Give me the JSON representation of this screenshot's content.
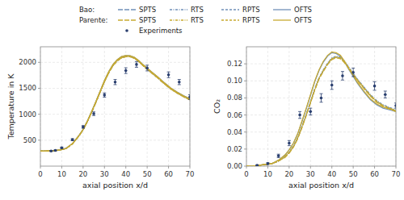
{
  "chart_data": [
    {
      "type": "line",
      "xlabel": "axial position x/d",
      "ylabel": "Temperature in K",
      "xlim": [
        0,
        70
      ],
      "xticks": [
        0,
        10,
        20,
        30,
        40,
        50,
        60,
        70
      ],
      "ylim": [
        0,
        2300
      ],
      "yticks": [
        500,
        1000,
        1500,
        2000
      ],
      "grid": true,
      "legend": "top",
      "x": [
        0,
        3,
        6,
        9,
        12,
        15,
        18,
        20,
        22,
        24,
        26,
        28,
        30,
        32,
        34,
        36,
        38,
        40,
        42,
        44,
        46,
        48,
        50,
        52,
        55,
        58,
        61,
        64,
        67,
        70
      ],
      "series": [
        {
          "name": "SPTS",
          "group": "Bao:",
          "color": "#7090b8",
          "line_style": "long-dash",
          "values": [
            290,
            292,
            295,
            310,
            340,
            430,
            580,
            700,
            860,
            1040,
            1230,
            1430,
            1630,
            1800,
            1940,
            2030,
            2090,
            2110,
            2110,
            2080,
            2020,
            1940,
            1870,
            1800,
            1700,
            1590,
            1490,
            1410,
            1340,
            1280
          ]
        },
        {
          "name": "RTS",
          "group": "Bao:",
          "color": "#7090b8",
          "line_style": "dash-dot",
          "values": [
            290,
            292,
            295,
            310,
            340,
            432,
            583,
            703,
            863,
            1043,
            1233,
            1433,
            1633,
            1803,
            1943,
            2033,
            2093,
            2113,
            2113,
            2083,
            2023,
            1943,
            1873,
            1803,
            1703,
            1593,
            1493,
            1413,
            1343,
            1283
          ]
        },
        {
          "name": "RPTS",
          "group": "Bao:",
          "color": "#7090b8",
          "line_style": "short-dash",
          "values": [
            290,
            292,
            295,
            310,
            340,
            431,
            581,
            701,
            861,
            1041,
            1231,
            1431,
            1631,
            1801,
            1941,
            2031,
            2091,
            2111,
            2111,
            2081,
            2021,
            1941,
            1871,
            1801,
            1701,
            1591,
            1491,
            1411,
            1341,
            1281
          ]
        },
        {
          "name": "OFTS",
          "group": "Bao:",
          "color": "#7090b8",
          "line_style": "solid",
          "values": [
            290,
            292,
            295,
            312,
            343,
            436,
            588,
            710,
            872,
            1055,
            1248,
            1450,
            1652,
            1822,
            1962,
            2052,
            2112,
            2132,
            2128,
            2098,
            2038,
            1958,
            1888,
            1818,
            1718,
            1608,
            1508,
            1428,
            1358,
            1298
          ]
        },
        {
          "name": "SPTS",
          "group": "Parente:",
          "color": "#c8aa30",
          "line_style": "long-dash",
          "values": [
            290,
            292,
            295,
            309,
            338,
            428,
            577,
            697,
            857,
            1037,
            1227,
            1427,
            1627,
            1797,
            1937,
            2027,
            2087,
            2107,
            2107,
            2077,
            2017,
            1937,
            1867,
            1797,
            1697,
            1587,
            1487,
            1407,
            1337,
            1277
          ]
        },
        {
          "name": "RTS",
          "group": "Parente:",
          "color": "#c8aa30",
          "line_style": "dash-dot",
          "values": [
            290,
            292,
            295,
            310,
            339,
            429,
            579,
            699,
            859,
            1039,
            1229,
            1429,
            1629,
            1799,
            1939,
            2029,
            2089,
            2109,
            2109,
            2079,
            2019,
            1939,
            1869,
            1799,
            1699,
            1589,
            1489,
            1409,
            1339,
            1279
          ]
        },
        {
          "name": "RPTS",
          "group": "Parente:",
          "color": "#c8aa30",
          "line_style": "short-dash",
          "values": [
            290,
            292,
            295,
            309,
            338,
            428,
            578,
            698,
            858,
            1038,
            1228,
            1428,
            1628,
            1798,
            1938,
            2028,
            2088,
            2108,
            2108,
            2078,
            2018,
            1938,
            1868,
            1798,
            1698,
            1588,
            1488,
            1408,
            1338,
            1278
          ]
        },
        {
          "name": "OFTS",
          "group": "Parente:",
          "color": "#c8aa30",
          "line_style": "solid",
          "values": [
            290,
            292,
            295,
            312,
            342,
            435,
            587,
            709,
            871,
            1054,
            1247,
            1449,
            1651,
            1821,
            1961,
            2051,
            2111,
            2131,
            2127,
            2097,
            2037,
            1957,
            1887,
            1817,
            1717,
            1607,
            1507,
            1427,
            1357,
            1297
          ]
        },
        {
          "name": "Experiments",
          "type": "scatter",
          "marker": "dot",
          "color": "#2a3f6f",
          "x": [
            5,
            7,
            10,
            15,
            20,
            25,
            30,
            35,
            40,
            45,
            50,
            60,
            65,
            70
          ],
          "values": [
            292,
            302,
            352,
            510,
            755,
            1010,
            1370,
            1620,
            1840,
            1960,
            1890,
            1760,
            1620,
            1330
          ],
          "error_low": [
            10,
            10,
            15,
            20,
            25,
            35,
            40,
            50,
            55,
            55,
            55,
            55,
            50,
            45
          ],
          "error_high": [
            10,
            10,
            15,
            20,
            25,
            35,
            40,
            50,
            55,
            55,
            55,
            55,
            50,
            45
          ]
        }
      ]
    },
    {
      "type": "line",
      "xlabel": "axial position x/d",
      "ylabel": "CO₂",
      "xlim": [
        0,
        70
      ],
      "xticks": [
        0,
        10,
        20,
        30,
        40,
        50,
        60,
        70
      ],
      "ylim": [
        0,
        0.14
      ],
      "yticks": [
        {
          "value": 0,
          "label": "0.00"
        },
        0.02,
        0.04,
        0.06,
        0.08,
        {
          "value": 0.1,
          "label": "0.10"
        },
        0.12
      ],
      "grid": true,
      "x": [
        0,
        3,
        6,
        9,
        12,
        15,
        18,
        20,
        22,
        24,
        26,
        28,
        30,
        32,
        34,
        36,
        38,
        40,
        42,
        44,
        46,
        48,
        50,
        52,
        55,
        58,
        61,
        64,
        67,
        70
      ],
      "series": [
        {
          "color": "#7090b8",
          "line_style": "long-dash",
          "values": [
            0.0,
            0.0,
            0.001,
            0.002,
            0.003,
            0.006,
            0.011,
            0.016,
            0.023,
            0.033,
            0.046,
            0.06,
            0.075,
            0.09,
            0.103,
            0.112,
            0.12,
            0.126,
            0.128,
            0.127,
            0.122,
            0.115,
            0.108,
            0.101,
            0.092,
            0.083,
            0.076,
            0.071,
            0.068,
            0.065
          ]
        },
        {
          "color": "#7090b8",
          "line_style": "dash-dot",
          "values": [
            0.0,
            0.0,
            0.001,
            0.002,
            0.003,
            0.006,
            0.011,
            0.016,
            0.024,
            0.034,
            0.047,
            0.061,
            0.076,
            0.091,
            0.104,
            0.113,
            0.121,
            0.127,
            0.129,
            0.128,
            0.123,
            0.116,
            0.109,
            0.102,
            0.093,
            0.084,
            0.077,
            0.072,
            0.069,
            0.066
          ]
        },
        {
          "color": "#7090b8",
          "line_style": "short-dash",
          "values": [
            0.0,
            0.0,
            0.001,
            0.002,
            0.003,
            0.006,
            0.011,
            0.016,
            0.023,
            0.033,
            0.046,
            0.06,
            0.075,
            0.09,
            0.103,
            0.112,
            0.12,
            0.126,
            0.128,
            0.127,
            0.122,
            0.115,
            0.108,
            0.101,
            0.092,
            0.083,
            0.076,
            0.071,
            0.068,
            0.065
          ]
        },
        {
          "color": "#7090b8",
          "line_style": "solid",
          "values": [
            0.0,
            0.0,
            0.001,
            0.002,
            0.003,
            0.007,
            0.013,
            0.019,
            0.027,
            0.038,
            0.052,
            0.067,
            0.083,
            0.099,
            0.112,
            0.122,
            0.129,
            0.133,
            0.132,
            0.129,
            0.122,
            0.113,
            0.105,
            0.097,
            0.087,
            0.078,
            0.072,
            0.068,
            0.066,
            0.064
          ]
        },
        {
          "color": "#c8aa30",
          "line_style": "long-dash",
          "values": [
            0.0,
            0.0,
            0.001,
            0.002,
            0.003,
            0.006,
            0.01,
            0.015,
            0.022,
            0.032,
            0.045,
            0.059,
            0.074,
            0.089,
            0.102,
            0.111,
            0.119,
            0.125,
            0.127,
            0.126,
            0.121,
            0.114,
            0.107,
            0.1,
            0.091,
            0.082,
            0.075,
            0.07,
            0.067,
            0.064
          ]
        },
        {
          "color": "#c8aa30",
          "line_style": "dash-dot",
          "values": [
            0.0,
            0.0,
            0.001,
            0.002,
            0.003,
            0.006,
            0.011,
            0.016,
            0.023,
            0.033,
            0.046,
            0.06,
            0.075,
            0.09,
            0.103,
            0.112,
            0.12,
            0.126,
            0.128,
            0.127,
            0.122,
            0.115,
            0.108,
            0.101,
            0.092,
            0.083,
            0.076,
            0.071,
            0.068,
            0.065
          ]
        },
        {
          "color": "#c8aa30",
          "line_style": "short-dash",
          "values": [
            0.0,
            0.0,
            0.001,
            0.002,
            0.003,
            0.006,
            0.011,
            0.016,
            0.023,
            0.033,
            0.046,
            0.06,
            0.075,
            0.09,
            0.103,
            0.112,
            0.12,
            0.126,
            0.128,
            0.127,
            0.122,
            0.115,
            0.108,
            0.101,
            0.092,
            0.083,
            0.076,
            0.071,
            0.068,
            0.065
          ]
        },
        {
          "color": "#c8aa30",
          "line_style": "solid",
          "values": [
            0.0,
            0.0,
            0.001,
            0.002,
            0.003,
            0.007,
            0.013,
            0.019,
            0.027,
            0.038,
            0.053,
            0.068,
            0.084,
            0.1,
            0.113,
            0.123,
            0.13,
            0.134,
            0.133,
            0.13,
            0.123,
            0.114,
            0.106,
            0.098,
            0.088,
            0.079,
            0.073,
            0.069,
            0.067,
            0.065
          ]
        },
        {
          "type": "scatter",
          "marker": "dot",
          "color": "#2a3f6f",
          "x": [
            5,
            10,
            15,
            20,
            25,
            30,
            35,
            40,
            45,
            50,
            60,
            65,
            70
          ],
          "values": [
            0.001,
            0.003,
            0.012,
            0.027,
            0.06,
            0.064,
            0.08,
            0.095,
            0.106,
            0.11,
            0.094,
            0.084,
            0.071
          ],
          "error_low": [
            0.0005,
            0.001,
            0.002,
            0.003,
            0.004,
            0.004,
            0.005,
            0.005,
            0.005,
            0.005,
            0.005,
            0.004,
            0.003
          ],
          "error_high": [
            0.0005,
            0.001,
            0.002,
            0.003,
            0.004,
            0.004,
            0.005,
            0.005,
            0.005,
            0.005,
            0.005,
            0.004,
            0.003
          ]
        }
      ]
    }
  ]
}
